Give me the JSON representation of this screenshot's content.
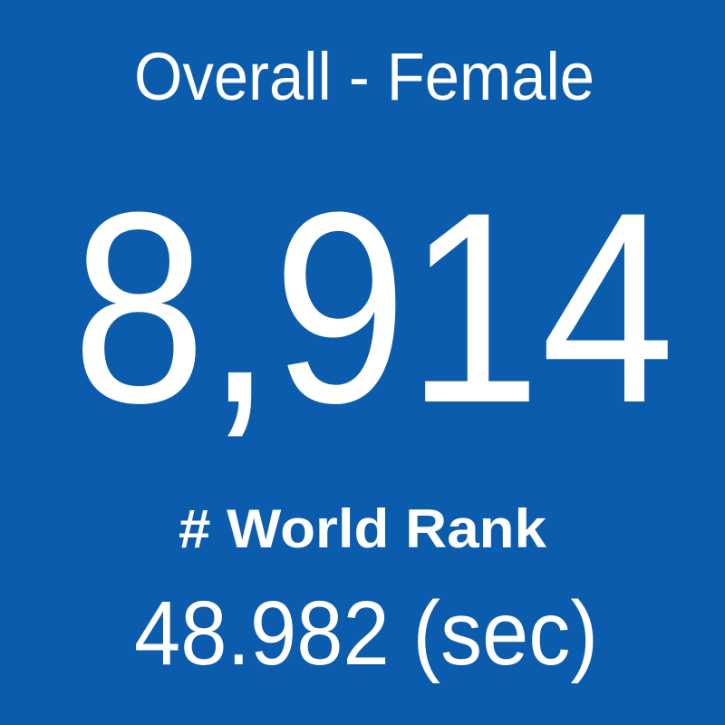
{
  "tile": {
    "title": "Overall - Female",
    "value": "8,914",
    "label": "# World Rank",
    "time": "48.982 (sec)"
  }
}
